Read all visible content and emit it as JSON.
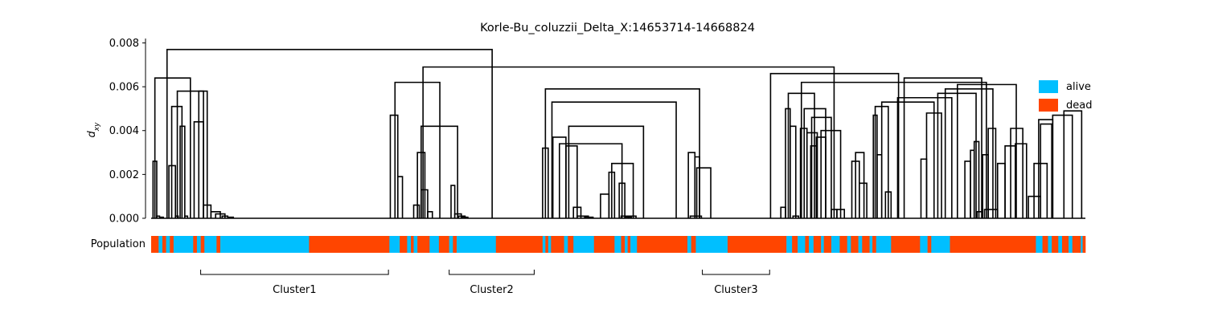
{
  "chart_data": {
    "type": "dendrogram",
    "title": "Korle-Bu_coluzzii_Delta_X:14653714-14668824",
    "ylabel_base": "d",
    "ylabel_sub": "xy",
    "ylim": [
      0,
      0.0082
    ],
    "yticks": [
      "0.000",
      "0.002",
      "0.004",
      "0.006",
      "0.008"
    ],
    "ytick_values": [
      0,
      0.002,
      0.004,
      0.006,
      0.008
    ],
    "population_label": "Population",
    "colors": {
      "alive": "#00bfff",
      "dead": "#ff4500",
      "tree": "#000000"
    },
    "legend": [
      {
        "label": "alive",
        "color": "#00bfff"
      },
      {
        "label": "dead",
        "color": "#ff4500"
      }
    ],
    "population_strip": [
      [
        "dead",
        0,
        0.8
      ],
      [
        "alive",
        0.8,
        1.2
      ],
      [
        "dead",
        1.2,
        1.6
      ],
      [
        "alive",
        1.6,
        2.0
      ],
      [
        "dead",
        2.0,
        2.4
      ],
      [
        "alive",
        2.4,
        4.5
      ],
      [
        "dead",
        4.5,
        4.9
      ],
      [
        "alive",
        4.9,
        5.3
      ],
      [
        "dead",
        5.3,
        5.7
      ],
      [
        "alive",
        5.7,
        7.0
      ],
      [
        "dead",
        7.0,
        7.4
      ],
      [
        "alive",
        7.4,
        16.9
      ],
      [
        "dead",
        16.9,
        25.5
      ],
      [
        "alive",
        25.5,
        26.6
      ],
      [
        "dead",
        26.6,
        27.4
      ],
      [
        "alive",
        27.4,
        27.8
      ],
      [
        "dead",
        27.8,
        28.1
      ],
      [
        "alive",
        28.1,
        28.5
      ],
      [
        "dead",
        28.5,
        29.8
      ],
      [
        "alive",
        29.8,
        30.8
      ],
      [
        "dead",
        30.8,
        31.9
      ],
      [
        "alive",
        31.9,
        32.3
      ],
      [
        "dead",
        32.3,
        32.7
      ],
      [
        "alive",
        32.7,
        36.9
      ],
      [
        "dead",
        36.9,
        41.9
      ],
      [
        "alive",
        41.9,
        42.2
      ],
      [
        "dead",
        42.2,
        42.5
      ],
      [
        "alive",
        42.5,
        42.8
      ],
      [
        "dead",
        42.8,
        44.2
      ],
      [
        "alive",
        44.2,
        44.6
      ],
      [
        "dead",
        44.6,
        45.2
      ],
      [
        "alive",
        45.2,
        47.4
      ],
      [
        "dead",
        47.4,
        49.6
      ],
      [
        "alive",
        49.6,
        50.3
      ],
      [
        "dead",
        50.3,
        50.7
      ],
      [
        "alive",
        50.7,
        51.0
      ],
      [
        "dead",
        51.0,
        51.3
      ],
      [
        "alive",
        51.3,
        52.0
      ],
      [
        "dead",
        52.0,
        57.4
      ],
      [
        "alive",
        57.4,
        57.8
      ],
      [
        "dead",
        57.8,
        58.3
      ],
      [
        "alive",
        58.3,
        61.7
      ],
      [
        "dead",
        61.7,
        68.0
      ],
      [
        "alive",
        68.0,
        68.6
      ],
      [
        "dead",
        68.6,
        69.2
      ],
      [
        "alive",
        69.2,
        70.0
      ],
      [
        "dead",
        70.0,
        70.4
      ],
      [
        "alive",
        70.4,
        70.9
      ],
      [
        "dead",
        70.9,
        71.7
      ],
      [
        "alive",
        71.7,
        72.0
      ],
      [
        "dead",
        72.0,
        72.8
      ],
      [
        "alive",
        72.8,
        73.7
      ],
      [
        "dead",
        73.7,
        74.5
      ],
      [
        "alive",
        74.5,
        74.9
      ],
      [
        "dead",
        74.9,
        75.7
      ],
      [
        "alive",
        75.7,
        76.1
      ],
      [
        "dead",
        76.1,
        76.9
      ],
      [
        "alive",
        76.9,
        77.2
      ],
      [
        "dead",
        77.2,
        77.6
      ],
      [
        "alive",
        77.6,
        79.2
      ],
      [
        "dead",
        79.2,
        82.3
      ],
      [
        "alive",
        82.3,
        83.1
      ],
      [
        "dead",
        83.1,
        83.5
      ],
      [
        "alive",
        83.5,
        85.5
      ],
      [
        "dead",
        85.5,
        94.7
      ],
      [
        "alive",
        94.7,
        95.4
      ],
      [
        "dead",
        95.4,
        96.0
      ],
      [
        "alive",
        96.0,
        96.4
      ],
      [
        "dead",
        96.4,
        97.1
      ],
      [
        "alive",
        97.1,
        97.5
      ],
      [
        "dead",
        97.5,
        98.2
      ],
      [
        "alive",
        98.2,
        98.6
      ],
      [
        "dead",
        98.6,
        99.5
      ],
      [
        "alive",
        99.5,
        99.7
      ],
      [
        "dead",
        99.7,
        100
      ]
    ],
    "clusters": [
      {
        "label": "Cluster1",
        "start": 5.3,
        "end": 25.4
      },
      {
        "label": "Cluster2",
        "start": 31.9,
        "end": 41.0
      },
      {
        "label": "Cluster3",
        "start": 59.0,
        "end": 66.2
      }
    ],
    "merges": [
      [
        0.2,
        0.6,
        0.0026
      ],
      [
        0.6,
        0.9,
        0.0001
      ],
      [
        1.0,
        1.3,
        5e-05
      ],
      [
        1.9,
        2.6,
        0.0024
      ],
      [
        2.6,
        2.9,
        0.0001
      ],
      [
        3.1,
        3.6,
        0.0042
      ],
      [
        3.6,
        3.9,
        0.0001
      ],
      [
        2.2,
        3.3,
        0.0051
      ],
      [
        4.6,
        5.6,
        0.0044
      ],
      [
        5.6,
        6.4,
        0.0006
      ],
      [
        6.4,
        7.4,
        0.0003
      ],
      [
        6.9,
        7.9,
        0.0002
      ],
      [
        7.6,
        8.2,
        0.0001
      ],
      [
        8.2,
        8.8,
        5e-05
      ],
      [
        5.1,
        6.0,
        0.0058
      ],
      [
        2.8,
        5.6,
        0.0058
      ],
      [
        0.4,
        4.2,
        0.0064
      ],
      [
        25.6,
        26.4,
        0.0047
      ],
      [
        26.4,
        26.9,
        0.0019
      ],
      [
        28.1,
        28.7,
        0.0006
      ],
      [
        28.9,
        29.6,
        0.0013
      ],
      [
        29.6,
        30.1,
        0.0003
      ],
      [
        28.5,
        29.3,
        0.003
      ],
      [
        32.1,
        32.5,
        0.0015
      ],
      [
        32.5,
        33.2,
        0.0002
      ],
      [
        32.9,
        33.6,
        0.0001
      ],
      [
        33.2,
        33.9,
        5e-05
      ],
      [
        28.9,
        32.8,
        0.0042
      ],
      [
        26.1,
        30.9,
        0.0062
      ],
      [
        41.9,
        42.5,
        0.0032
      ],
      [
        43.0,
        44.4,
        0.0037
      ],
      [
        44.4,
        45.6,
        0.0033
      ],
      [
        45.2,
        46.0,
        0.0005
      ],
      [
        45.6,
        46.8,
        0.0001
      ],
      [
        46.4,
        47.3,
        5e-05
      ],
      [
        48.1,
        49.0,
        0.0011
      ],
      [
        49.0,
        49.6,
        0.0021
      ],
      [
        50.1,
        50.7,
        0.0016
      ],
      [
        50.3,
        51.1,
        0.0001
      ],
      [
        50.7,
        51.4,
        5e-05
      ],
      [
        51.1,
        51.9,
        0.0001
      ],
      [
        49.3,
        51.6,
        0.0025
      ],
      [
        57.5,
        58.2,
        0.003
      ],
      [
        58.2,
        58.7,
        0.0028
      ],
      [
        57.7,
        58.9,
        0.0001
      ],
      [
        58.4,
        59.9,
        0.0023
      ],
      [
        43.7,
        50.4,
        0.0034
      ],
      [
        44.7,
        52.7,
        0.0042
      ],
      [
        42.9,
        56.2,
        0.0053
      ],
      [
        42.2,
        58.7,
        0.0059
      ],
      [
        67.4,
        67.9,
        0.0005
      ],
      [
        67.9,
        68.4,
        0.005
      ],
      [
        68.4,
        69.0,
        0.0042
      ],
      [
        68.7,
        69.3,
        0.0001
      ],
      [
        69.5,
        70.2,
        0.0041
      ],
      [
        70.2,
        71.3,
        0.0039
      ],
      [
        70.6,
        71.2,
        0.0033
      ],
      [
        71.2,
        72.2,
        0.0037
      ],
      [
        72.8,
        73.4,
        0.0004
      ],
      [
        73.4,
        74.2,
        0.0004
      ],
      [
        75.0,
        75.8,
        0.0026
      ],
      [
        75.8,
        76.6,
        0.0016
      ],
      [
        75.4,
        76.3,
        0.003
      ],
      [
        71.7,
        73.8,
        0.004
      ],
      [
        70.7,
        72.8,
        0.0046
      ],
      [
        69.9,
        72.2,
        0.005
      ],
      [
        68.2,
        71.0,
        0.0057
      ],
      [
        77.3,
        77.7,
        0.0047
      ],
      [
        77.7,
        78.2,
        0.0029
      ],
      [
        78.6,
        79.2,
        0.0012
      ],
      [
        77.5,
        78.9,
        0.0051
      ],
      [
        82.4,
        83.0,
        0.0027
      ],
      [
        83.0,
        84.6,
        0.0048
      ],
      [
        87.1,
        87.7,
        0.0026
      ],
      [
        87.7,
        88.1,
        0.0031
      ],
      [
        88.1,
        88.6,
        0.0035
      ],
      [
        88.4,
        89.0,
        0.0003
      ],
      [
        89.0,
        89.6,
        0.0029
      ],
      [
        89.6,
        90.4,
        0.0041
      ],
      [
        89.2,
        90.6,
        0.0004
      ],
      [
        90.6,
        91.4,
        0.0025
      ],
      [
        91.4,
        92.5,
        0.0033
      ],
      [
        92.5,
        93.7,
        0.0034
      ],
      [
        92.0,
        93.3,
        0.0041
      ],
      [
        93.9,
        95.2,
        0.001
      ],
      [
        95.2,
        96.4,
        0.0043
      ],
      [
        94.5,
        95.9,
        0.0025
      ],
      [
        95.0,
        96.5,
        0.0045
      ],
      [
        96.5,
        98.6,
        0.0047
      ],
      [
        97.7,
        99.6,
        0.0049
      ],
      [
        78.2,
        83.8,
        0.0053
      ],
      [
        79.9,
        85.7,
        0.0055
      ],
      [
        84.2,
        88.3,
        0.0057
      ],
      [
        85.0,
        90.1,
        0.0059
      ],
      [
        86.3,
        92.6,
        0.0061
      ],
      [
        69.6,
        89.4,
        0.0062
      ],
      [
        80.6,
        88.9,
        0.0064
      ],
      [
        66.3,
        80.0,
        0.0066
      ],
      [
        29.1,
        73.1,
        0.0069
      ],
      [
        1.7,
        36.5,
        0.0077
      ]
    ]
  }
}
